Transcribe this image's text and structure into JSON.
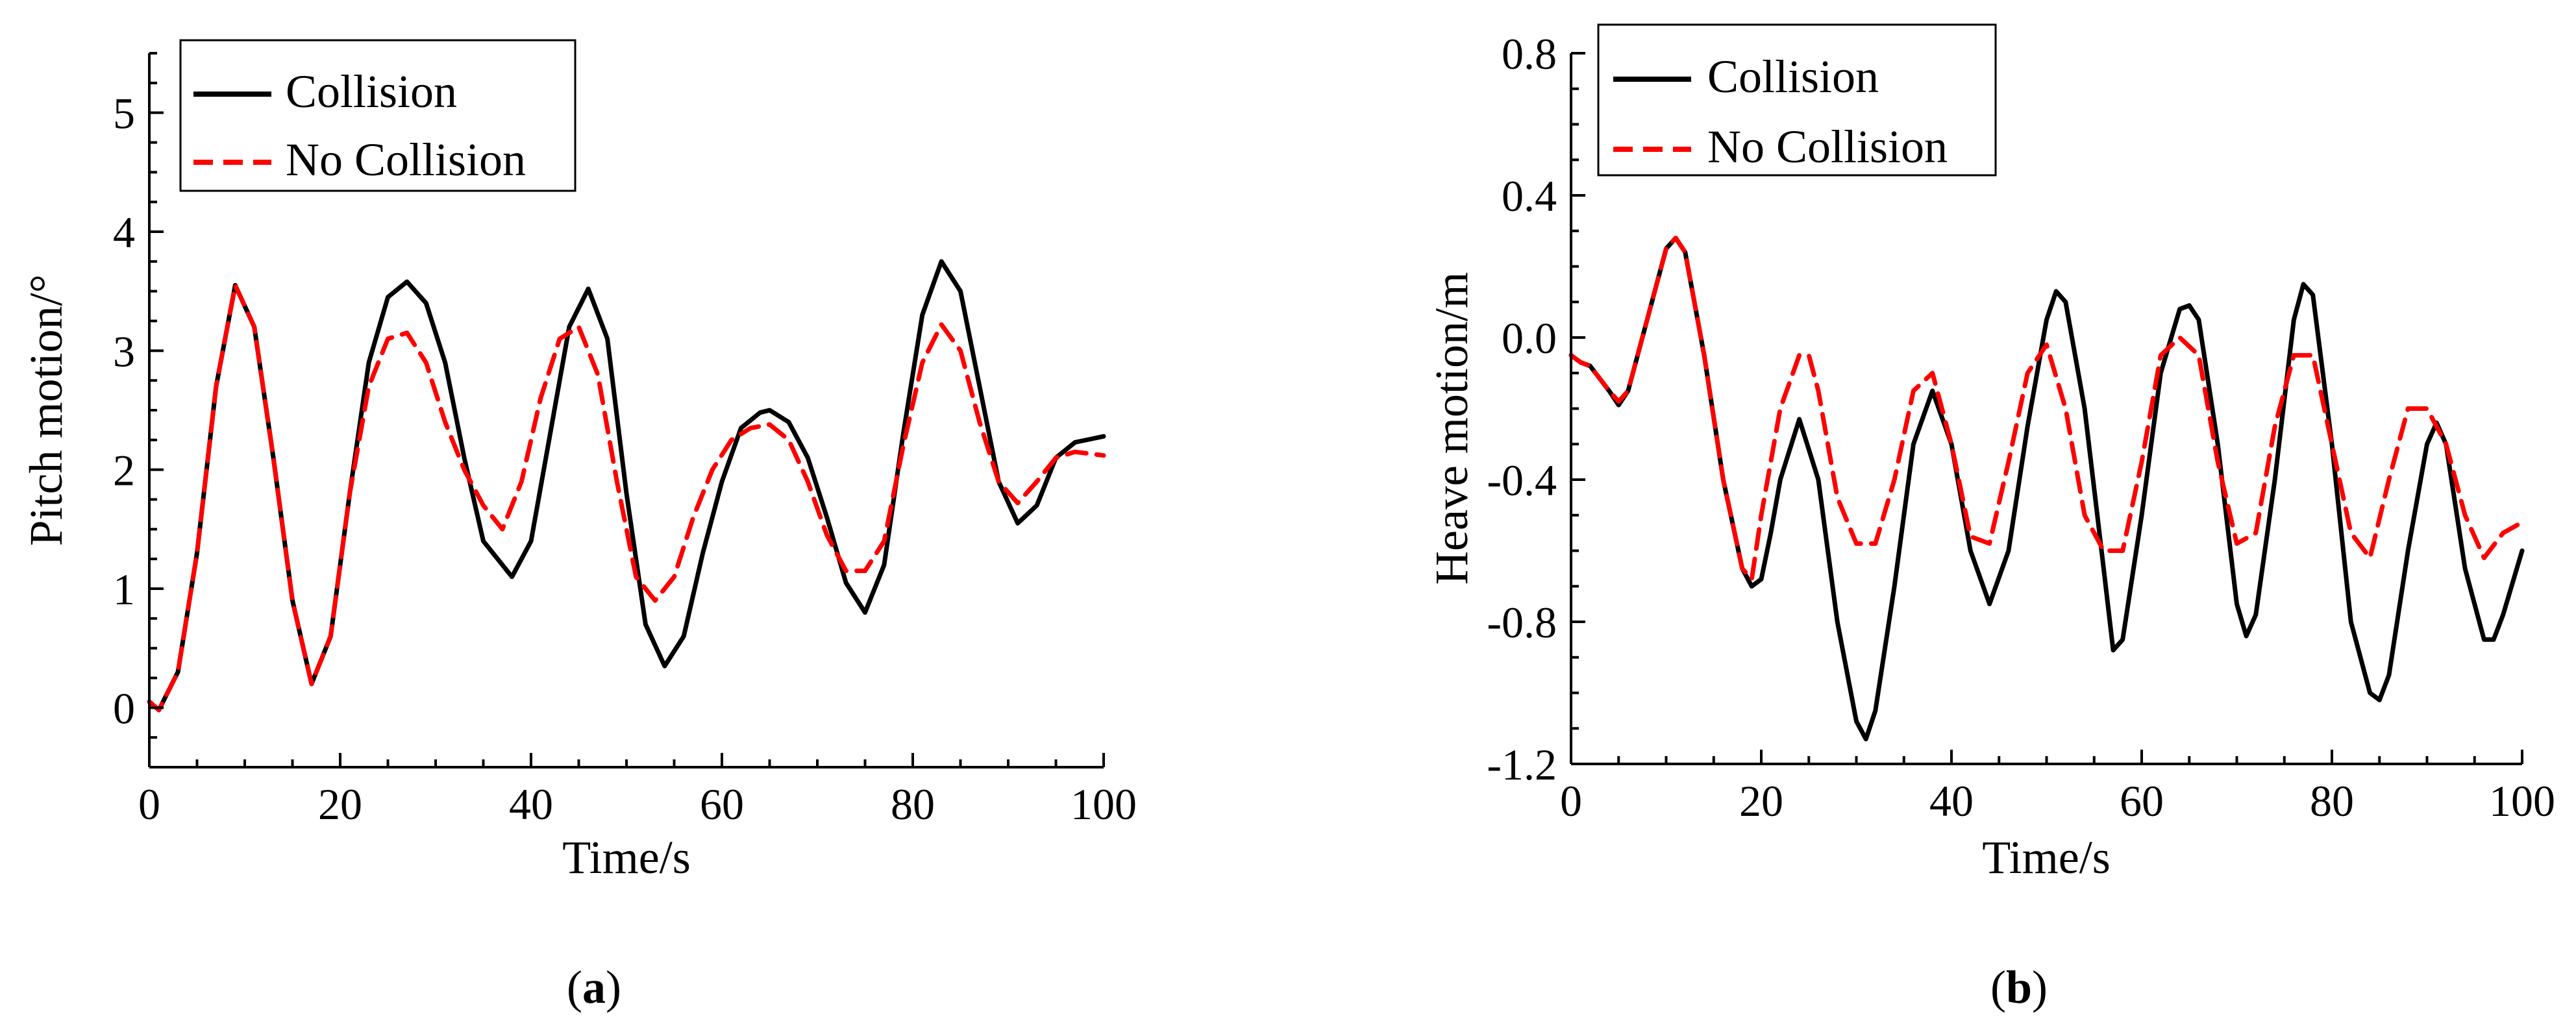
{
  "chart_data": [
    {
      "type": "line",
      "panel_label": "a",
      "xlabel": "Time/s",
      "ylabel": "Pitch motion/°",
      "xlim": [
        0,
        100
      ],
      "ylim": [
        -0.5,
        5.5
      ],
      "xticks": [
        0,
        20,
        40,
        60,
        80,
        100
      ],
      "yticks": [
        0,
        1,
        2,
        3,
        4,
        5
      ],
      "legend_position": "top-left",
      "series": [
        {
          "name": "Collision",
          "color": "#000000",
          "dash": "solid",
          "x": [
            0,
            1,
            3,
            5,
            7,
            9,
            11,
            13,
            15,
            17,
            19,
            21,
            23,
            25,
            27,
            29,
            31,
            33,
            35,
            38,
            40,
            42,
            44,
            46,
            48,
            50,
            52,
            54,
            56,
            58,
            60,
            62,
            64,
            65,
            67,
            69,
            71,
            73,
            75,
            77,
            79,
            81,
            83,
            85,
            87,
            89,
            91,
            93,
            95,
            97,
            100
          ],
          "y": [
            0.05,
            -0.02,
            0.3,
            1.3,
            2.7,
            3.55,
            3.2,
            2.1,
            0.9,
            0.2,
            0.6,
            1.8,
            2.9,
            3.45,
            3.58,
            3.4,
            2.9,
            2.1,
            1.4,
            1.1,
            1.4,
            2.3,
            3.2,
            3.52,
            3.1,
            1.8,
            0.7,
            0.35,
            0.6,
            1.3,
            1.9,
            2.35,
            2.48,
            2.5,
            2.4,
            2.1,
            1.6,
            1.05,
            0.8,
            1.2,
            2.3,
            3.3,
            3.75,
            3.5,
            2.7,
            1.9,
            1.55,
            1.7,
            2.1,
            2.23,
            2.28
          ]
        },
        {
          "name": "No Collision",
          "color": "#ff0000",
          "dash": "dashed",
          "x": [
            0,
            1,
            3,
            5,
            7,
            9,
            11,
            13,
            15,
            17,
            19,
            21,
            23,
            25,
            27,
            29,
            31,
            33,
            35,
            37,
            39,
            41,
            43,
            45,
            47,
            49,
            51,
            53,
            55,
            57,
            59,
            61,
            63,
            65,
            67,
            69,
            71,
            73,
            75,
            77,
            79,
            81,
            83,
            85,
            87,
            89,
            91,
            93,
            95,
            97,
            100
          ],
          "y": [
            0.05,
            -0.02,
            0.3,
            1.3,
            2.7,
            3.55,
            3.2,
            2.1,
            0.9,
            0.2,
            0.6,
            1.8,
            2.7,
            3.1,
            3.15,
            2.9,
            2.4,
            2.0,
            1.7,
            1.5,
            1.9,
            2.6,
            3.1,
            3.2,
            2.8,
            1.9,
            1.1,
            0.9,
            1.1,
            1.6,
            2.0,
            2.25,
            2.35,
            2.38,
            2.25,
            1.9,
            1.45,
            1.15,
            1.15,
            1.4,
            2.2,
            2.9,
            3.22,
            3.0,
            2.4,
            1.9,
            1.72,
            1.9,
            2.1,
            2.15,
            2.12
          ]
        }
      ]
    },
    {
      "type": "line",
      "panel_label": "b",
      "xlabel": "Time/s",
      "ylabel": "Heave motion/m",
      "xlim": [
        0,
        100
      ],
      "ylim": [
        -1.2,
        0.8
      ],
      "xticks": [
        0,
        20,
        40,
        60,
        80,
        100
      ],
      "yticks": [
        -1.2,
        -0.8,
        -0.4,
        0.0,
        0.4,
        0.8
      ],
      "ytick_labels": [
        "-1.2",
        "-0.8",
        "-0.4",
        "0.0",
        "0.4",
        "0.8"
      ],
      "legend_position": "top-left",
      "series": [
        {
          "name": "Collision",
          "color": "#000000",
          "dash": "solid",
          "x": [
            0,
            1,
            2,
            4,
            5,
            6,
            8,
            10,
            11,
            12,
            14,
            16,
            18,
            19,
            20,
            21,
            22,
            24,
            26,
            28,
            30,
            31,
            32,
            34,
            36,
            38,
            40,
            42,
            44,
            46,
            48,
            50,
            51,
            52,
            54,
            56,
            57,
            58,
            60,
            62,
            64,
            65,
            66,
            68,
            70,
            71,
            72,
            74,
            76,
            77,
            78,
            80,
            82,
            84,
            85,
            86,
            88,
            90,
            91,
            92,
            94,
            96,
            97,
            98,
            100
          ],
          "y": [
            -0.05,
            -0.07,
            -0.08,
            -0.15,
            -0.19,
            -0.15,
            0.05,
            0.25,
            0.28,
            0.24,
            -0.05,
            -0.4,
            -0.65,
            -0.7,
            -0.68,
            -0.55,
            -0.4,
            -0.23,
            -0.4,
            -0.8,
            -1.08,
            -1.13,
            -1.05,
            -0.7,
            -0.3,
            -0.15,
            -0.3,
            -0.6,
            -0.75,
            -0.6,
            -0.25,
            0.05,
            0.13,
            0.1,
            -0.2,
            -0.65,
            -0.88,
            -0.85,
            -0.5,
            -0.1,
            0.08,
            0.09,
            0.05,
            -0.3,
            -0.75,
            -0.84,
            -0.78,
            -0.4,
            0.05,
            0.15,
            0.12,
            -0.3,
            -0.8,
            -1.0,
            -1.02,
            -0.95,
            -0.6,
            -0.3,
            -0.24,
            -0.3,
            -0.65,
            -0.85,
            -0.85,
            -0.78,
            -0.6
          ]
        },
        {
          "name": "No Collision",
          "color": "#ff0000",
          "dash": "dashed",
          "x": [
            0,
            1,
            2,
            4,
            5,
            6,
            8,
            10,
            11,
            12,
            14,
            16,
            18,
            19,
            20,
            22,
            24,
            25,
            26,
            28,
            30,
            32,
            34,
            36,
            38,
            40,
            42,
            44,
            46,
            48,
            50,
            52,
            54,
            56,
            58,
            60,
            62,
            64,
            66,
            68,
            70,
            72,
            74,
            76,
            78,
            80,
            82,
            84,
            86,
            88,
            90,
            92,
            94,
            96,
            98,
            100
          ],
          "y": [
            -0.05,
            -0.07,
            -0.08,
            -0.15,
            -0.18,
            -0.15,
            0.05,
            0.25,
            0.28,
            0.24,
            -0.05,
            -0.4,
            -0.65,
            -0.68,
            -0.5,
            -0.2,
            -0.05,
            -0.05,
            -0.15,
            -0.45,
            -0.58,
            -0.58,
            -0.4,
            -0.15,
            -0.1,
            -0.3,
            -0.56,
            -0.58,
            -0.35,
            -0.1,
            -0.02,
            -0.2,
            -0.5,
            -0.6,
            -0.6,
            -0.35,
            -0.05,
            0.0,
            -0.05,
            -0.35,
            -0.58,
            -0.55,
            -0.25,
            -0.05,
            -0.05,
            -0.3,
            -0.55,
            -0.62,
            -0.4,
            -0.2,
            -0.2,
            -0.3,
            -0.5,
            -0.62,
            -0.55,
            -0.52
          ]
        }
      ]
    }
  ]
}
